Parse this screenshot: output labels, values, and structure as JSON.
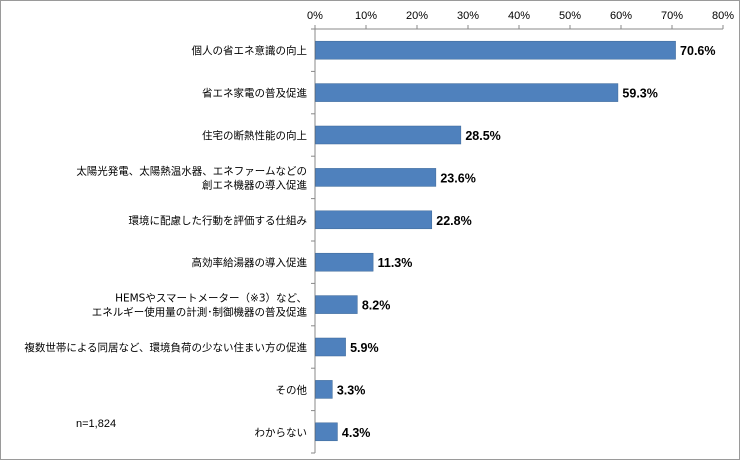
{
  "chart_data": {
    "type": "bar",
    "orientation": "horizontal",
    "categories": [
      [
        "個人の省エネ意識の向上"
      ],
      [
        "省エネ家電の普及促進"
      ],
      [
        "住宅の断熱性能の向上"
      ],
      [
        "太陽光発電、太陽熱温水器、エネファームなどの",
        "創エネ機器の導入促進"
      ],
      [
        "環境に配慮した行動を評価する仕組み"
      ],
      [
        "高効率給湯器の導入促進"
      ],
      [
        "HEMSやスマートメーター（※3）など、",
        "エネルギー使用量の計測･制御機器の普及促進"
      ],
      [
        "複数世帯による同居など、環境負荷の少ない住まい方の促進"
      ],
      [
        "その他"
      ],
      [
        "わからない"
      ]
    ],
    "values": [
      70.6,
      59.3,
      28.5,
      23.6,
      22.8,
      11.3,
      8.2,
      5.9,
      3.3,
      4.3
    ],
    "value_labels": [
      "70.6%",
      "59.3%",
      "28.5%",
      "23.6%",
      "22.8%",
      "11.3%",
      "8.2%",
      "5.9%",
      "3.3%",
      "4.3%"
    ],
    "xlim": [
      0,
      80
    ],
    "ticks": [
      0,
      10,
      20,
      30,
      40,
      50,
      60,
      70,
      80
    ],
    "tick_labels": [
      "0%",
      "10%",
      "20%",
      "30%",
      "40%",
      "50%",
      "60%",
      "70%",
      "80%"
    ],
    "axis_position": "top",
    "grid": false,
    "bar_color": "#4f81bd",
    "note": "n=1,824"
  }
}
